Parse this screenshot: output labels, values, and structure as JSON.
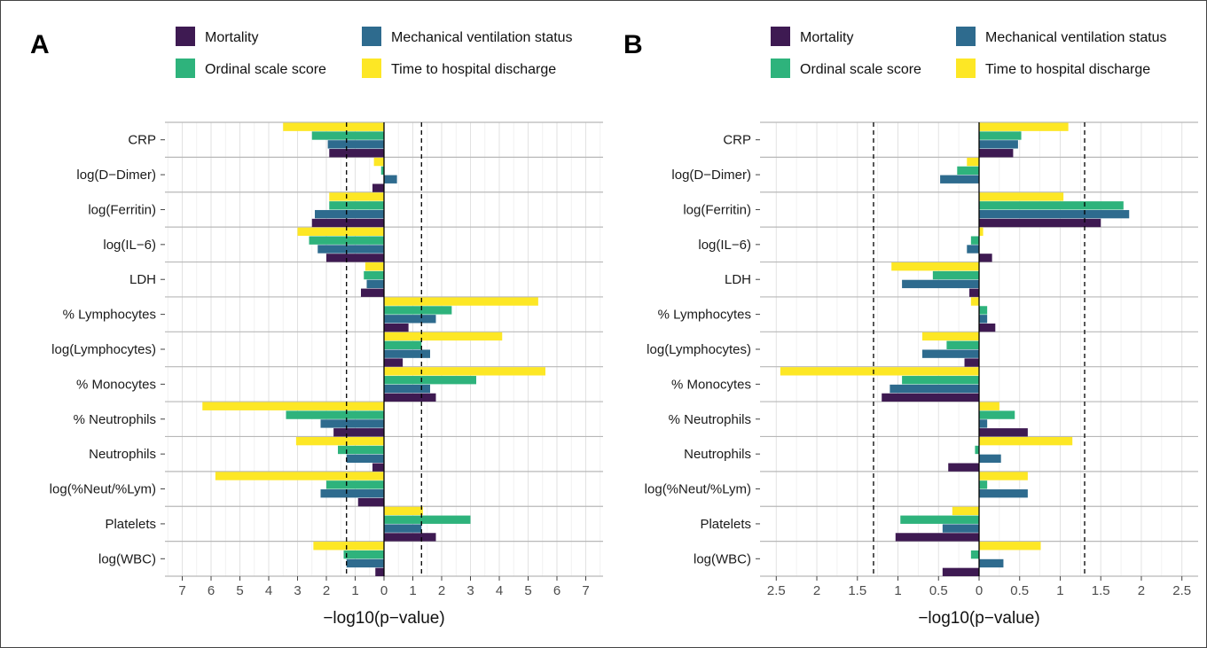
{
  "chart_data": [
    {
      "panel": "A",
      "type": "bar",
      "orientation": "horizontal",
      "xlabel": "−log10(p−value)",
      "xlim": [
        -7.6,
        7.6
      ],
      "x_ticks": [
        -7,
        -6,
        -5,
        -4,
        -3,
        -2,
        -1,
        0,
        1,
        2,
        3,
        4,
        5,
        6,
        7
      ],
      "x_tick_labels": [
        "7",
        "6",
        "5",
        "4",
        "3",
        "2",
        "1",
        "0",
        "1",
        "2",
        "3",
        "4",
        "5",
        "6",
        "7"
      ],
      "threshold_lines": [
        -1.301,
        1.301
      ],
      "grid": true,
      "legend_position": "top",
      "categories": [
        "CRP",
        "log(D−Dimer)",
        "log(Ferritin)",
        "log(IL−6)",
        "LDH",
        "% Lymphocytes",
        "log(Lymphocytes)",
        "% Monocytes",
        "% Neutrophils",
        "Neutrophils",
        "log(%Neut/%Lym)",
        "Platelets",
        "log(WBC)"
      ],
      "series": [
        {
          "name": "Mortality",
          "values": [
            -1.9,
            -0.4,
            -2.5,
            -2.0,
            -0.8,
            0.85,
            0.65,
            1.8,
            -1.75,
            -0.4,
            -0.9,
            1.8,
            -0.3
          ]
        },
        {
          "name": "Mechanical ventilation status",
          "values": [
            -1.95,
            0.45,
            -2.4,
            -2.3,
            -0.6,
            1.8,
            1.6,
            1.6,
            -2.2,
            -1.3,
            -2.2,
            1.3,
            -1.3
          ]
        },
        {
          "name": "Ordinal scale score",
          "values": [
            -2.5,
            -0.1,
            -1.9,
            -2.6,
            -0.7,
            2.35,
            1.3,
            3.2,
            -3.4,
            -1.6,
            -2.0,
            3.0,
            -1.4
          ]
        },
        {
          "name": "Time to hospital discharge",
          "values": [
            -3.5,
            -0.35,
            -1.9,
            -3.0,
            -0.65,
            5.35,
            4.1,
            5.6,
            -6.3,
            -3.05,
            -5.85,
            1.35,
            -2.45
          ]
        }
      ]
    },
    {
      "panel": "B",
      "type": "bar",
      "orientation": "horizontal",
      "xlabel": "−log10(p−value)",
      "xlim": [
        -2.7,
        2.7
      ],
      "x_ticks": [
        -2.5,
        -2,
        -1.5,
        -1,
        -0.5,
        0,
        0.5,
        1,
        1.5,
        2,
        2.5
      ],
      "x_tick_labels": [
        "2.5",
        "2",
        "1.5",
        "1",
        "0.5",
        "0",
        "0.5",
        "1",
        "1.5",
        "2",
        "2.5"
      ],
      "threshold_lines": [
        -1.301,
        1.301
      ],
      "grid": true,
      "legend_position": "top",
      "categories": [
        "CRP",
        "log(D−Dimer)",
        "log(Ferritin)",
        "log(IL−6)",
        "LDH",
        "% Lymphocytes",
        "log(Lymphocytes)",
        "% Monocytes",
        "% Neutrophils",
        "Neutrophils",
        "log(%Neut/%Lym)",
        "Platelets",
        "log(WBC)"
      ],
      "series": [
        {
          "name": "Mortality",
          "values": [
            0.42,
            0.0,
            1.5,
            0.16,
            -0.12,
            0.2,
            -0.18,
            -1.2,
            0.6,
            -0.38,
            0.0,
            -1.03,
            -0.45
          ]
        },
        {
          "name": "Mechanical ventilation status",
          "values": [
            0.48,
            -0.48,
            1.85,
            -0.15,
            -0.95,
            0.1,
            -0.7,
            -1.1,
            0.1,
            0.27,
            0.6,
            -0.45,
            0.3
          ]
        },
        {
          "name": "Ordinal scale score",
          "values": [
            0.52,
            -0.27,
            1.78,
            -0.1,
            -0.57,
            0.1,
            -0.4,
            -0.95,
            0.44,
            -0.05,
            0.1,
            -0.97,
            -0.1
          ]
        },
        {
          "name": "Time to hospital discharge",
          "values": [
            1.1,
            -0.15,
            1.04,
            0.05,
            -1.08,
            -0.1,
            -0.7,
            -2.45,
            0.25,
            1.15,
            0.6,
            -0.33,
            0.76
          ]
        }
      ]
    }
  ],
  "colors": {
    "Mortality": "#3e1a52",
    "Mechanical ventilation status": "#2e6b8e",
    "Ordinal scale score": "#2eb37c",
    "Time to hospital discharge": "#fde725"
  },
  "legend": {
    "items": [
      "Mortality",
      "Mechanical ventilation status",
      "Ordinal scale score",
      "Time to hospital discharge"
    ]
  }
}
